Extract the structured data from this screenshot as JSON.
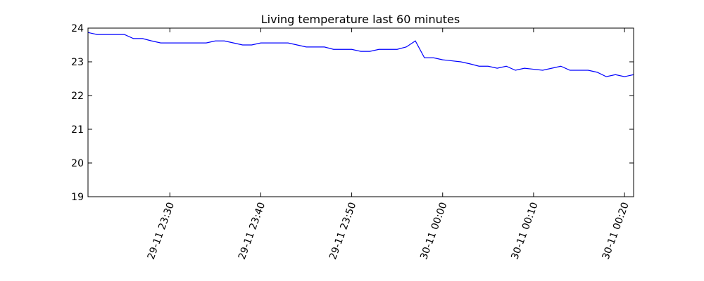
{
  "chart_data": {
    "type": "line",
    "title": "Living temperature last 60 minutes",
    "xlabel": "",
    "ylabel": "",
    "x_unit": "minutes",
    "xlim": [
      "29-11 23:21",
      "30-11 00:21"
    ],
    "ylim": [
      19,
      24
    ],
    "yticks": [
      19,
      20,
      21,
      22,
      23,
      24
    ],
    "xticks": [
      {
        "x": "29-11 23:30",
        "label": "29-11 23:30"
      },
      {
        "x": "29-11 23:40",
        "label": "29-11 23:40"
      },
      {
        "x": "29-11 23:50",
        "label": "29-11 23:50"
      },
      {
        "x": "30-11 00:00",
        "label": "30-11 00:00"
      },
      {
        "x": "30-11 00:10",
        "label": "30-11 00:10"
      },
      {
        "x": "30-11 00:20",
        "label": "30-11 00:20"
      }
    ],
    "grid": false,
    "legend": "none",
    "series": [
      {
        "color": "#0000ff",
        "x": [
          "29-11 23:21",
          "29-11 23:22",
          "29-11 23:23",
          "29-11 23:24",
          "29-11 23:25",
          "29-11 23:26",
          "29-11 23:27",
          "29-11 23:28",
          "29-11 23:29",
          "29-11 23:30",
          "29-11 23:31",
          "29-11 23:32",
          "29-11 23:33",
          "29-11 23:34",
          "29-11 23:35",
          "29-11 23:36",
          "29-11 23:37",
          "29-11 23:38",
          "29-11 23:39",
          "29-11 23:40",
          "29-11 23:41",
          "29-11 23:42",
          "29-11 23:43",
          "29-11 23:44",
          "29-11 23:45",
          "29-11 23:46",
          "29-11 23:47",
          "29-11 23:48",
          "29-11 23:49",
          "29-11 23:50",
          "29-11 23:51",
          "29-11 23:52",
          "29-11 23:53",
          "29-11 23:54",
          "29-11 23:55",
          "29-11 23:56",
          "29-11 23:57",
          "29-11 23:58",
          "29-11 23:59",
          "30-11 00:00",
          "30-11 00:01",
          "30-11 00:02",
          "30-11 00:03",
          "30-11 00:04",
          "30-11 00:05",
          "30-11 00:06",
          "30-11 00:07",
          "30-11 00:08",
          "30-11 00:09",
          "30-11 00:10",
          "30-11 00:11",
          "30-11 00:12",
          "30-11 00:13",
          "30-11 00:14",
          "30-11 00:15",
          "30-11 00:16",
          "30-11 00:17",
          "30-11 00:18",
          "30-11 00:19",
          "30-11 00:20",
          "30-11 00:21"
        ],
        "y": [
          23.87,
          23.81,
          23.81,
          23.81,
          23.81,
          23.69,
          23.69,
          23.62,
          23.56,
          23.56,
          23.56,
          23.56,
          23.56,
          23.56,
          23.62,
          23.62,
          23.56,
          23.5,
          23.5,
          23.56,
          23.56,
          23.56,
          23.56,
          23.5,
          23.44,
          23.44,
          23.44,
          23.37,
          23.37,
          23.37,
          23.31,
          23.31,
          23.37,
          23.37,
          23.37,
          23.44,
          23.62,
          23.12,
          23.12,
          23.06,
          23.03,
          23.0,
          22.94,
          22.87,
          22.87,
          22.81,
          22.87,
          22.75,
          22.81,
          22.78,
          22.75,
          22.81,
          22.87,
          22.75,
          22.75,
          22.75,
          22.69,
          22.56,
          22.62,
          22.56,
          22.62
        ]
      }
    ]
  }
}
